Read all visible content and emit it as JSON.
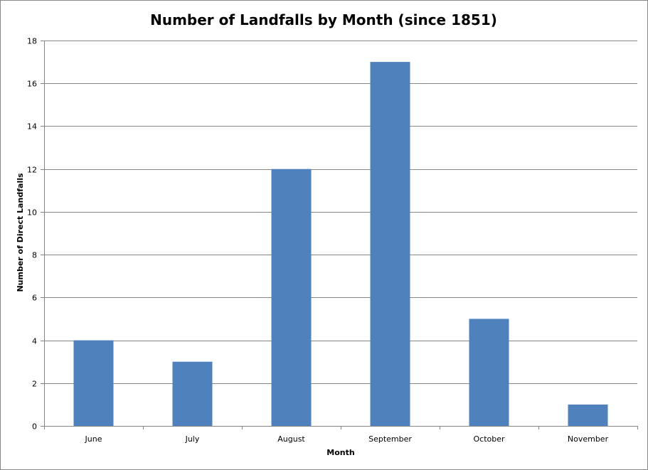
{
  "chart_data": {
    "type": "bar",
    "title": "Number of Landfalls by Month (since 1851)",
    "xlabel": "Month",
    "ylabel": "Number of Direct Landfalls",
    "categories": [
      "June",
      "July",
      "August",
      "September",
      "October",
      "November"
    ],
    "values": [
      4,
      3,
      12,
      17,
      5,
      1
    ],
    "ylim": [
      0,
      18
    ],
    "yticks": [
      "0",
      "2",
      "4",
      "6",
      "8",
      "10",
      "12",
      "14",
      "16",
      "18"
    ],
    "grid": true,
    "legend": "none",
    "colors": {
      "bar": "#4f81bd",
      "grid": "#868686",
      "axis": "#868686"
    }
  }
}
